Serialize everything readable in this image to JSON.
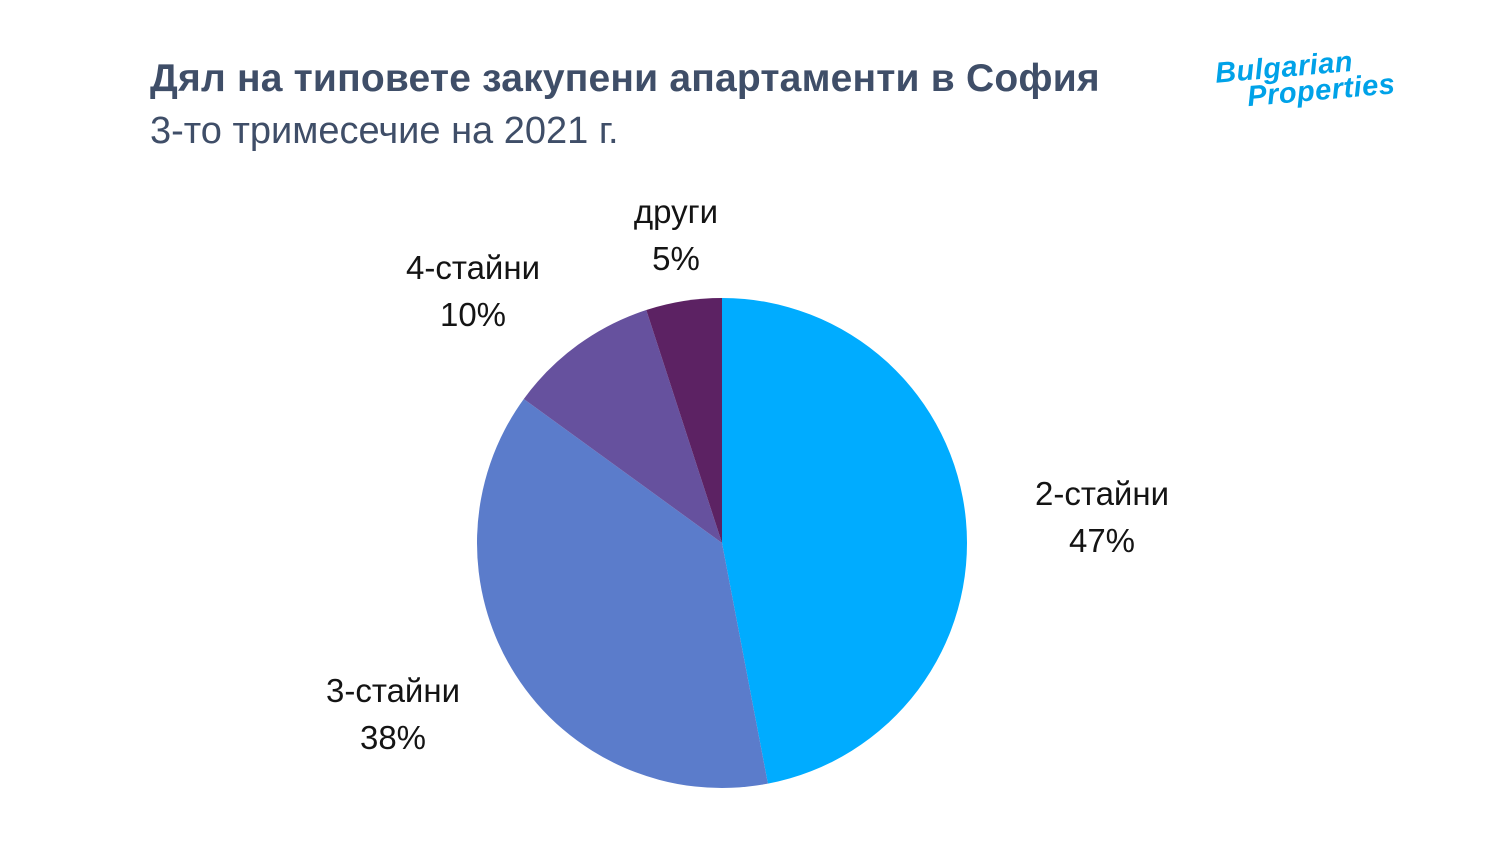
{
  "header": {
    "title": "Дял на типовете закупени апартаменти в София",
    "subtitle": "3-то тримесечие на 2021 г."
  },
  "logo": {
    "line1": "Bulgarian",
    "line2": "Properties",
    "color": "#00A2E8"
  },
  "colors": {
    "title_text": "#3F4E68",
    "label_text": "#141414",
    "background": "#FFFFFF"
  },
  "chart_data": {
    "type": "pie",
    "title": "Дял на типовете закупени апартаменти в София",
    "subtitle": "3-то тримесечие на 2021 г.",
    "unit": "%",
    "start_angle_deg": 0,
    "direction": "clockwise",
    "legend": "none",
    "slices": [
      {
        "label": "2-стайни",
        "value": 47,
        "percent": "47%",
        "color": "#00ACFF"
      },
      {
        "label": "3-стайни",
        "value": 38,
        "percent": "38%",
        "color": "#5B7CCB"
      },
      {
        "label": "4-стайни",
        "value": 10,
        "percent": "10%",
        "color": "#66519E"
      },
      {
        "label": "други",
        "value": 5,
        "percent": "5%",
        "color": "#5C2263"
      }
    ]
  }
}
